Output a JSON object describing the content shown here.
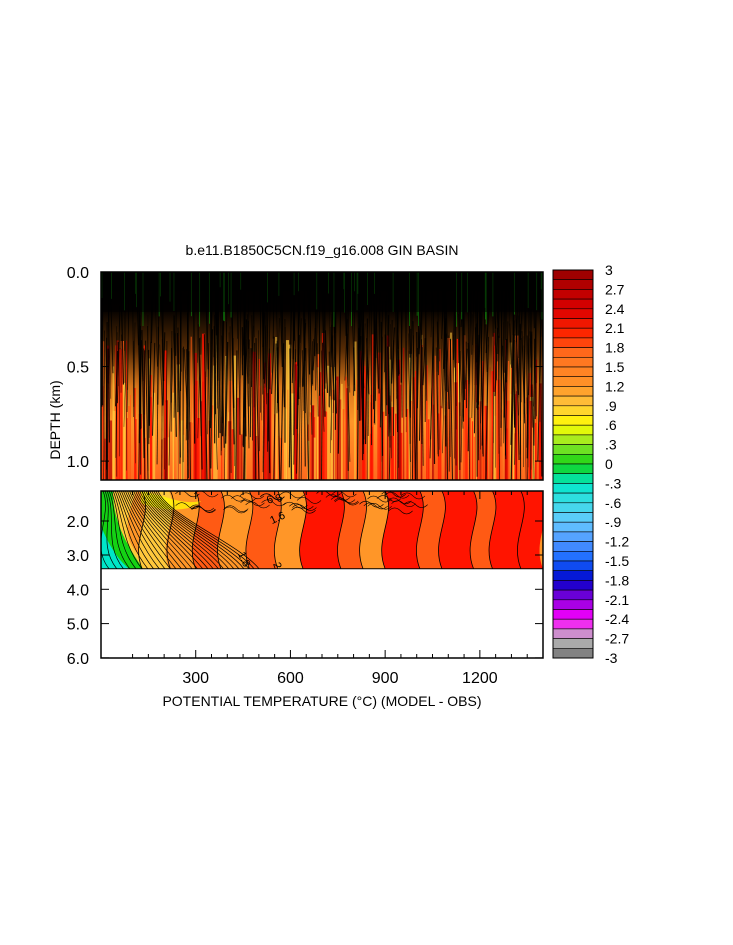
{
  "chart_data": {
    "type": "heatmap",
    "title": "b.e11.B1850C5CN.f19_g16.008 GIN BASIN",
    "xlabel": "POTENTIAL TEMPERATURE (°C) (MODEL - OBS)",
    "ylabel": "DEPTH (km)",
    "xlim": [
      0,
      1400
    ],
    "x_ticks": [
      "300",
      "600",
      "900",
      "1200"
    ],
    "x_tick_values": [
      300,
      600,
      900,
      1200
    ],
    "upper_panel": {
      "ylim": [
        0.0,
        1.1
      ],
      "y_ticks": [
        "0.0",
        "0.5",
        "1.0"
      ],
      "y_tick_values": [
        0.0,
        0.5,
        1.0
      ]
    },
    "lower_panel": {
      "ylim": [
        1.1,
        6.0
      ],
      "y_ticks": [
        "2.0",
        "3.0",
        "4.0",
        "5.0",
        "6.0"
      ],
      "y_tick_values": [
        2.0,
        3.0,
        4.0,
        5.0,
        6.0
      ],
      "data_bottom_depth": 3.4
    },
    "contour_labels": [
      "8",
      "6",
      "1.6",
      "1.8",
      "2"
    ],
    "colorbar": {
      "min": -3,
      "max": 3,
      "step": 0.15,
      "labels": [
        "3",
        "2.7",
        "2.4",
        "2.1",
        "1.8",
        "1.5",
        "1.2",
        ".9",
        ".6",
        ".3",
        "0",
        "-.3",
        "-.6",
        "-.9",
        "-1.2",
        "-1.5",
        "-1.8",
        "-2.1",
        "-2.4",
        "-2.7",
        "-3"
      ],
      "label_values": [
        3,
        2.7,
        2.4,
        2.1,
        1.8,
        1.5,
        1.2,
        0.9,
        0.6,
        0.3,
        0,
        -0.3,
        -0.6,
        -0.9,
        -1.2,
        -1.5,
        -1.8,
        -2.1,
        -2.4,
        -2.7,
        -3
      ]
    },
    "colors": {
      "dark_red": "#b40000",
      "red": "#ff1400",
      "orange_red": "#ff5a14",
      "orange": "#ff9628",
      "light_orange": "#ffc83c",
      "yellow": "#ffff00",
      "green": "#14d214",
      "cyan": "#00e6c8",
      "light_blue": "#78c8ff",
      "blue": "#1464ff",
      "dark_blue": "#0000c8",
      "purple": "#8c00dc",
      "magenta": "#ff00ff",
      "gray": "#a0a0a0",
      "dark_gray": "#707070"
    }
  }
}
